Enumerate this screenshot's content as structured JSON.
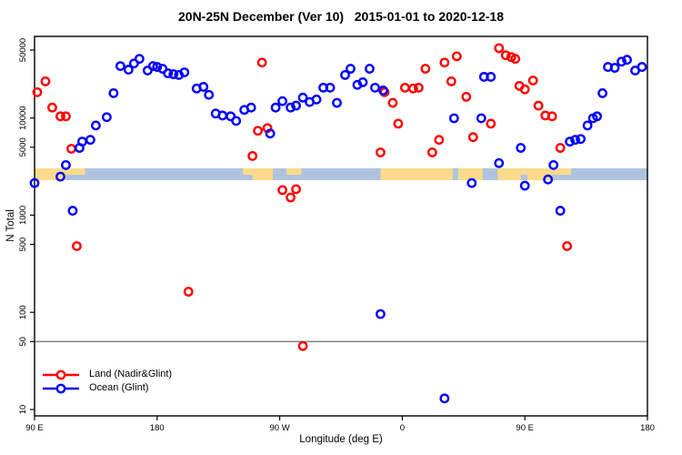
{
  "chart_data": {
    "type": "scatter",
    "title": "20N-25N December (Ver 10)   2015-01-01 to 2020-12-18",
    "xlabel": "Longitude (deg E)",
    "ylabel": "N Total",
    "x_axis": {
      "note": "longitude axis starts at 90E and wraps eastward through 180, 90W, 0 back to 180; internal coordinate 90..540",
      "range": [
        90,
        540
      ],
      "ticks": [
        {
          "value": 90,
          "label": "90 E"
        },
        {
          "value": 180,
          "label": "180"
        },
        {
          "value": 270,
          "label": "90 W"
        },
        {
          "value": 360,
          "label": "0"
        },
        {
          "value": 450,
          "label": "90 E"
        },
        {
          "value": 540,
          "label": "180"
        }
      ]
    },
    "y_axis": {
      "scale": "log10",
      "range": [
        10,
        50000
      ],
      "ticks": [
        {
          "value": 10,
          "label": "10"
        },
        {
          "value": 50,
          "label": "50"
        },
        {
          "value": 100,
          "label": "100"
        },
        {
          "value": 500,
          "label": "500"
        },
        {
          "value": 1000,
          "label": "1000"
        },
        {
          "value": 5000,
          "label": "5000"
        },
        {
          "value": 10000,
          "label": "10000"
        },
        {
          "value": 50000,
          "label": "50000"
        }
      ]
    },
    "reference_line": {
      "y_value": 50,
      "color": "#808080"
    },
    "map_strip": {
      "description": "land/ocean mask band for 20N-25N drawn across plot near N=2500-3100",
      "ocean_color": "#AEC3DF",
      "land_color": "#FBDB8B",
      "n_top": 3100,
      "n_bottom": 2400,
      "land_segments": [
        {
          "from": 90,
          "to": 113,
          "part": "full"
        },
        {
          "from": 113,
          "to": 127,
          "part": "top"
        },
        {
          "from": 243,
          "to": 250,
          "part": "top"
        },
        {
          "from": 250,
          "to": 265,
          "part": "full"
        },
        {
          "from": 275,
          "to": 286,
          "part": "top"
        },
        {
          "from": 344,
          "to": 397,
          "part": "full"
        },
        {
          "from": 401,
          "to": 419,
          "part": "full"
        },
        {
          "from": 430,
          "to": 447,
          "part": "full"
        },
        {
          "from": 447,
          "to": 452,
          "part": "top"
        },
        {
          "from": 452,
          "to": 470,
          "part": "full"
        },
        {
          "from": 470,
          "to": 484,
          "part": "top"
        }
      ]
    },
    "point_format": "[longitude_axis_deg (90..540 wrapped scale), N_total]",
    "series": [
      {
        "name": "Land (Nadir&Glint)",
        "color": "#FF0000",
        "points": [
          [
            92,
            18400
          ],
          [
            98,
            23800
          ],
          [
            103,
            12800
          ],
          [
            109,
            10400
          ],
          [
            113,
            10400
          ],
          [
            117,
            4820
          ],
          [
            121,
            480
          ],
          [
            203,
            163
          ],
          [
            250,
            4060
          ],
          [
            254,
            7380
          ],
          [
            257,
            37200
          ],
          [
            261,
            7870
          ],
          [
            272,
            1810
          ],
          [
            278,
            1520
          ],
          [
            282,
            1850
          ],
          [
            287,
            45
          ],
          [
            344,
            4420
          ],
          [
            347,
            18400
          ],
          [
            353,
            14300
          ],
          [
            357,
            8740
          ],
          [
            362,
            20500
          ],
          [
            368,
            20100
          ],
          [
            372,
            20500
          ],
          [
            377,
            32100
          ],
          [
            382,
            4420
          ],
          [
            387,
            5960
          ],
          [
            391,
            37200
          ],
          [
            396,
            23800
          ],
          [
            400,
            43100
          ],
          [
            407,
            16500
          ],
          [
            412,
            6350
          ],
          [
            425,
            8740
          ],
          [
            431,
            52300
          ],
          [
            436,
            44200
          ],
          [
            440,
            42300
          ],
          [
            443,
            40600
          ],
          [
            446,
            21400
          ],
          [
            450,
            19700
          ],
          [
            456,
            24300
          ],
          [
            460,
            13400
          ],
          [
            465,
            10600
          ],
          [
            470,
            10400
          ],
          [
            476,
            4920
          ],
          [
            481,
            480
          ]
        ]
      },
      {
        "name": "Ocean (Glint)",
        "color": "#0000FF",
        "points": [
          [
            90,
            2140
          ],
          [
            109,
            2490
          ],
          [
            113,
            3280
          ],
          [
            118,
            1110
          ],
          [
            123,
            4920
          ],
          [
            125,
            5710
          ],
          [
            131,
            5960
          ],
          [
            135,
            8370
          ],
          [
            143,
            10200
          ],
          [
            148,
            18000
          ],
          [
            153,
            34200
          ],
          [
            159,
            31400
          ],
          [
            163,
            36400
          ],
          [
            167,
            40600
          ],
          [
            173,
            30800
          ],
          [
            177,
            34200
          ],
          [
            180,
            33500
          ],
          [
            184,
            32100
          ],
          [
            188,
            28800
          ],
          [
            192,
            28200
          ],
          [
            196,
            27700
          ],
          [
            200,
            29500
          ],
          [
            209,
            20100
          ],
          [
            214,
            20900
          ],
          [
            218,
            17300
          ],
          [
            223,
            11100
          ],
          [
            228,
            10600
          ],
          [
            234,
            10400
          ],
          [
            238,
            9330
          ],
          [
            244,
            12100
          ],
          [
            249,
            12800
          ],
          [
            263,
            6920
          ],
          [
            267,
            12800
          ],
          [
            272,
            14900
          ],
          [
            278,
            12800
          ],
          [
            282,
            13400
          ],
          [
            287,
            16200
          ],
          [
            292,
            14600
          ],
          [
            297,
            15500
          ],
          [
            302,
            20500
          ],
          [
            307,
            20500
          ],
          [
            312,
            14300
          ],
          [
            318,
            27700
          ],
          [
            322,
            32100
          ],
          [
            327,
            21900
          ],
          [
            331,
            23300
          ],
          [
            336,
            32100
          ],
          [
            340,
            20500
          ],
          [
            346,
            19200
          ],
          [
            344,
            96
          ],
          [
            391,
            13
          ],
          [
            398,
            9930
          ],
          [
            411,
            2140
          ],
          [
            418,
            9930
          ],
          [
            420,
            26500
          ],
          [
            425,
            26500
          ],
          [
            431,
            3430
          ],
          [
            447,
            4920
          ],
          [
            450,
            2010
          ],
          [
            467,
            2330
          ],
          [
            471,
            3280
          ],
          [
            476,
            1110
          ],
          [
            483,
            5710
          ],
          [
            487,
            5960
          ],
          [
            491,
            6080
          ],
          [
            496,
            8370
          ],
          [
            500,
            9930
          ],
          [
            503,
            10400
          ],
          [
            507,
            18000
          ],
          [
            511,
            33500
          ],
          [
            516,
            32800
          ],
          [
            521,
            38000
          ],
          [
            525,
            39700
          ],
          [
            531,
            30800
          ],
          [
            536,
            33500
          ]
        ]
      }
    ]
  }
}
